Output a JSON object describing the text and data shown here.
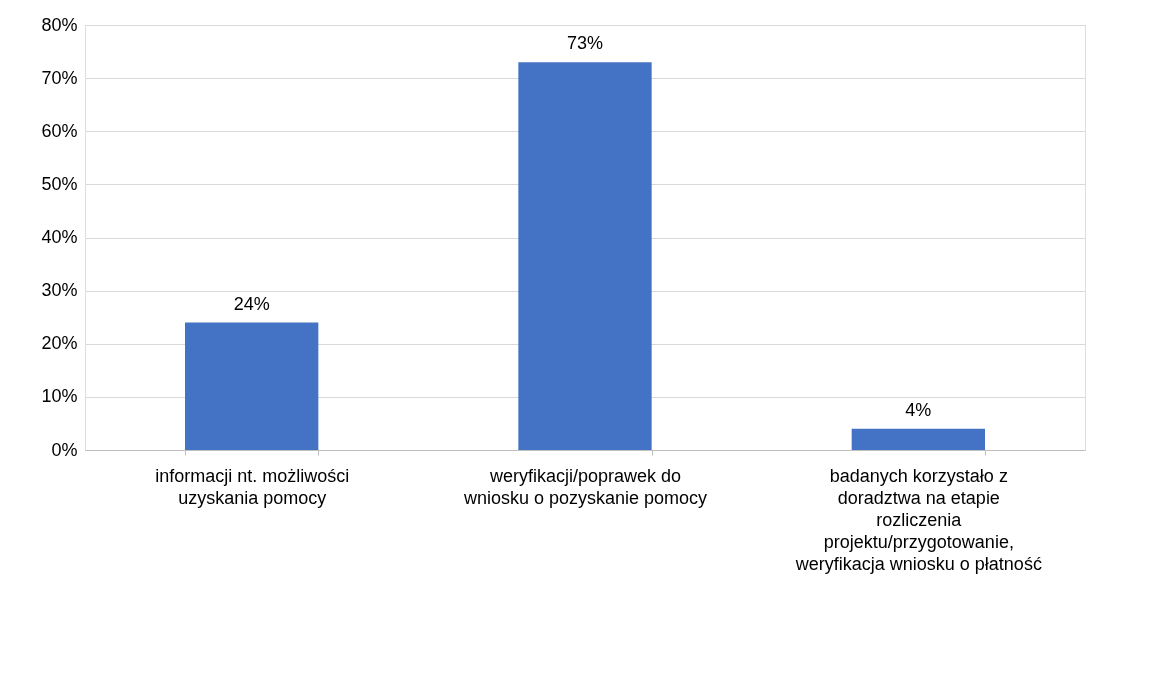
{
  "chart_data": {
    "type": "bar",
    "categories": [
      "informacji nt. możliwości uzyskania pomocy",
      "weryfikacji/poprawek do wniosku o pozyskanie pomocy",
      "badanych korzystało z doradztwa na etapie rozliczenia projektu/przygotowanie, weryfikacja wniosku o płatność"
    ],
    "values": [
      24,
      73,
      4
    ],
    "value_labels": [
      "24%",
      "73%",
      "4%"
    ],
    "color": "#4472c4",
    "ylim": [
      0,
      80
    ],
    "yticks": [
      {
        "value": 0,
        "label": "0%"
      },
      {
        "value": 10,
        "label": "10%"
      },
      {
        "value": 20,
        "label": "20%"
      },
      {
        "value": 30,
        "label": "30%"
      },
      {
        "value": 40,
        "label": "40%"
      },
      {
        "value": 50,
        "label": "50%"
      },
      {
        "value": 60,
        "label": "60%"
      },
      {
        "value": 70,
        "label": "70%"
      },
      {
        "value": 80,
        "label": "80%"
      }
    ],
    "grid": "y"
  }
}
